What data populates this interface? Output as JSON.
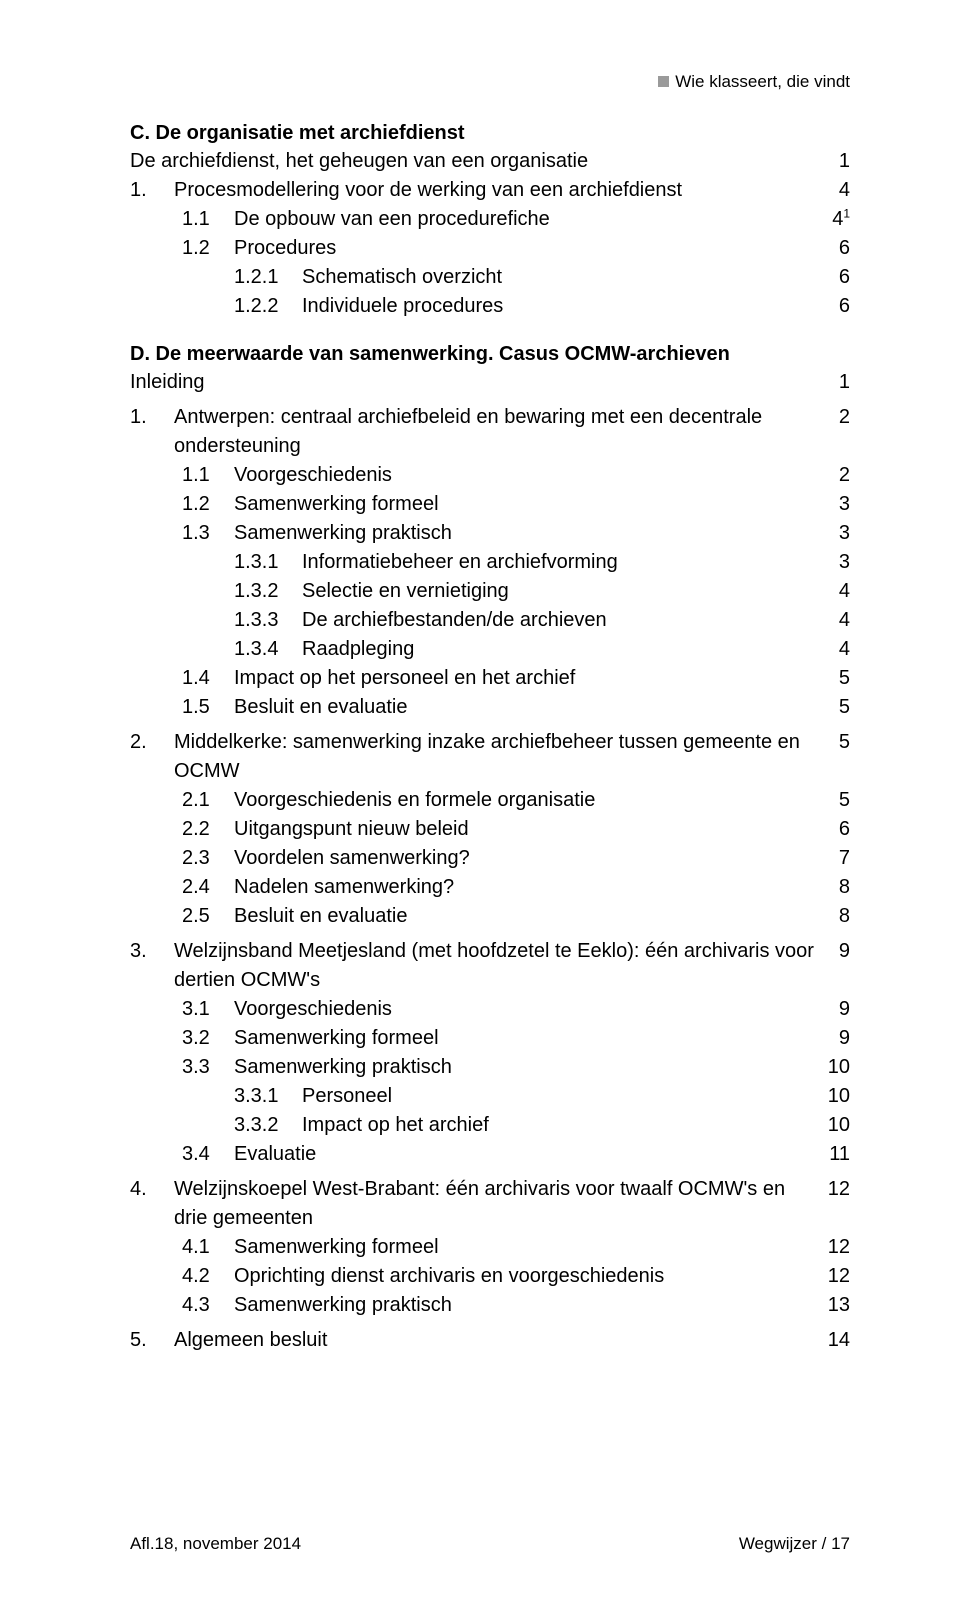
{
  "header": {
    "running_title": "Wie klasseert, die vindt"
  },
  "sections": {
    "C": {
      "title": "C. De organisatie met archiefdienst",
      "subtitle": "De archiefdienst, het geheugen van een organisatie",
      "subtitle_page": "1",
      "items": [
        {
          "num": "1.",
          "text": "Procesmodellering voor de werking van een archiefdienst",
          "page": "4",
          "lvl": 1
        },
        {
          "num": "1.1",
          "text": "De opbouw van een procedurefiche",
          "page": "4",
          "sup": "1",
          "lvl": 2
        },
        {
          "num": "1.2",
          "text": "Procedures",
          "page": "6",
          "lvl": 2
        },
        {
          "num": "1.2.1",
          "text": "Schematisch overzicht",
          "page": "6",
          "lvl": 3
        },
        {
          "num": "1.2.2",
          "text": "Individuele procedures",
          "page": "6",
          "lvl": 3
        }
      ]
    },
    "D": {
      "title": "D. De meerwaarde van samenwerking. Casus OCMW-archieven",
      "inleiding": {
        "text": "Inleiding",
        "page": "1"
      },
      "items": [
        {
          "num": "1.",
          "text": "Antwerpen: centraal archiefbeleid en bewaring met een decentrale ondersteuning",
          "page": "2",
          "lvl": 1,
          "gap": true
        },
        {
          "num": "1.1",
          "text": "Voorgeschiedenis",
          "page": "2",
          "lvl": 2
        },
        {
          "num": "1.2",
          "text": "Samenwerking formeel",
          "page": "3",
          "lvl": 2
        },
        {
          "num": "1.3",
          "text": "Samenwerking praktisch",
          "page": "3",
          "lvl": 2
        },
        {
          "num": "1.3.1",
          "text": "Informatiebeheer en archiefvorming",
          "page": "3",
          "lvl": 3
        },
        {
          "num": "1.3.2",
          "text": "Selectie en vernietiging",
          "page": "4",
          "lvl": 3
        },
        {
          "num": "1.3.3",
          "text": "De archiefbestanden/de archieven",
          "page": "4",
          "lvl": 3
        },
        {
          "num": "1.3.4",
          "text": "Raadpleging",
          "page": "4",
          "lvl": 3
        },
        {
          "num": "1.4",
          "text": "Impact op het personeel en het archief",
          "page": "5",
          "lvl": 2
        },
        {
          "num": "1.5",
          "text": "Besluit en evaluatie",
          "page": "5",
          "lvl": 2
        },
        {
          "num": "2.",
          "text": "Middelkerke: samenwerking inzake archiefbeheer tussen gemeente en OCMW",
          "page": "5",
          "lvl": 1,
          "gap": true
        },
        {
          "num": "2.1",
          "text": "Voorgeschiedenis en formele organisatie",
          "page": "5",
          "lvl": 2
        },
        {
          "num": "2.2",
          "text": "Uitgangspunt nieuw beleid",
          "page": "6",
          "lvl": 2
        },
        {
          "num": "2.3",
          "text": "Voordelen samenwerking?",
          "page": "7",
          "lvl": 2
        },
        {
          "num": "2.4",
          "text": "Nadelen samenwerking?",
          "page": "8",
          "lvl": 2
        },
        {
          "num": "2.5",
          "text": "Besluit en evaluatie",
          "page": "8",
          "lvl": 2
        },
        {
          "num": "3.",
          "text": "Welzijnsband Meetjesland (met hoofdzetel te Eeklo): één archivaris voor dertien OCMW's",
          "page": "9",
          "lvl": 1,
          "gap": true
        },
        {
          "num": "3.1",
          "text": "Voorgeschiedenis",
          "page": "9",
          "lvl": 2
        },
        {
          "num": "3.2",
          "text": "Samenwerking formeel",
          "page": "9",
          "lvl": 2
        },
        {
          "num": "3.3",
          "text": "Samenwerking praktisch",
          "page": "10",
          "lvl": 2
        },
        {
          "num": "3.3.1",
          "text": "Personeel",
          "page": "10",
          "lvl": 3
        },
        {
          "num": "3.3.2",
          "text": "Impact op het archief",
          "page": "10",
          "lvl": 3
        },
        {
          "num": "3.4",
          "text": "Evaluatie",
          "page": "11",
          "lvl": 2
        },
        {
          "num": "4.",
          "text": "Welzijnskoepel West-Brabant: één archivaris voor twaalf OCMW's en drie gemeenten",
          "page": "12",
          "lvl": 1,
          "gap": true
        },
        {
          "num": "4.1",
          "text": "Samenwerking formeel",
          "page": "12",
          "lvl": 2
        },
        {
          "num": "4.2",
          "text": "Oprichting dienst archivaris en voorgeschiedenis",
          "page": "12",
          "lvl": 2
        },
        {
          "num": "4.3",
          "text": "Samenwerking praktisch",
          "page": "13",
          "lvl": 2
        },
        {
          "num": "5.",
          "text": "Algemeen besluit",
          "page": "14",
          "lvl": 1,
          "gap": true
        }
      ]
    }
  },
  "footer": {
    "left": "Afl.18, november 2014",
    "right": "Wegwijzer / 17"
  }
}
